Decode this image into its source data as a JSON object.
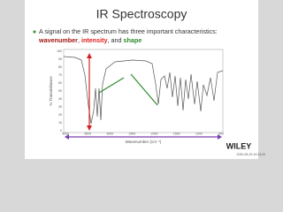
{
  "slide": {
    "title": "IR Spectroscopy",
    "bullet": [
      "A signal on the IR spectrum has three important characteristics: ",
      "wavenumber",
      ", ",
      "intensity",
      ", and ",
      "shape"
    ],
    "spectrum": {
      "y_label": "% Transmittance",
      "x_label": "Wavenumber (cm⁻¹)",
      "yticks": [
        "100",
        "90",
        "80",
        "70",
        "60",
        "50",
        "40",
        "30",
        "20",
        "10",
        "0"
      ],
      "xticks": [
        "4000",
        "3500",
        "3000",
        "2500",
        "2000",
        "1500",
        "1000",
        "400"
      ]
    },
    "brand": "WILEY",
    "timestamp": "2020-05-29 10:15:20"
  }
}
